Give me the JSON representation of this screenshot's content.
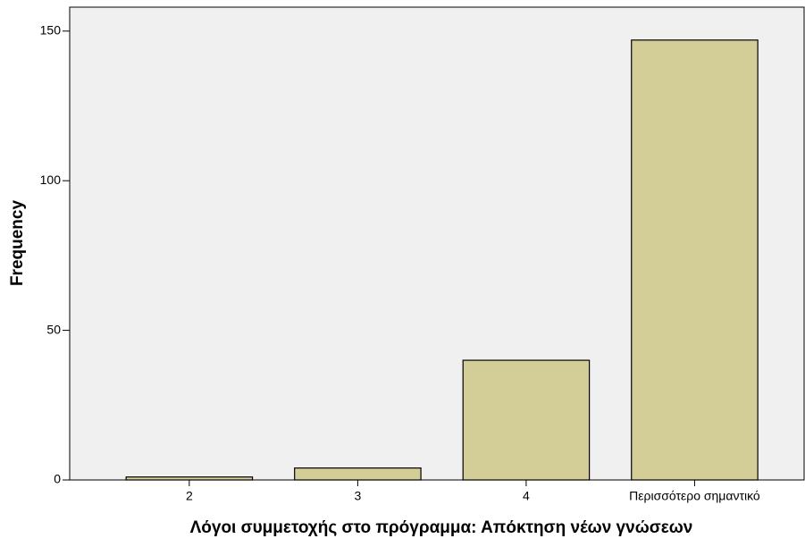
{
  "chart_data": {
    "type": "bar",
    "x_label": "Λόγοι συμμετοχής στο πρόγραμμα: Απόκτηση νέων γνώσεων",
    "y_label": "Frequency",
    "categories": [
      "2",
      "3",
      "4",
      "Περισσότερο σημαντικό"
    ],
    "values": [
      1,
      4,
      40,
      147
    ],
    "color": "#d3ce97",
    "ylim": [
      0,
      158
    ],
    "yticks": [
      0,
      50,
      100,
      150
    ],
    "grid": false
  }
}
